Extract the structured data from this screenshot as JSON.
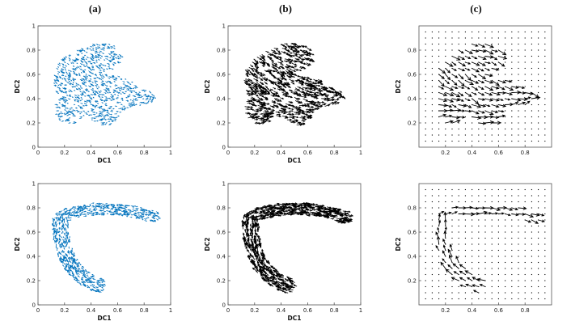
{
  "figure": {
    "column_labels": [
      "(a)",
      "(b)",
      "(c)"
    ],
    "description": "Six quiver (vector-field) panels on diffusion-component coordinates; rows show two datasets, columns show (a) blue per-cell velocity arrows, (b) black per-cell velocity arrows, (c) black velocities averaged on a regular dot grid."
  },
  "chart_data": [
    {
      "type": "quiver",
      "panel": "top-a",
      "layout": "scatter",
      "shape": "blob",
      "color": "#0072BD",
      "stroke_width": 0.6,
      "n_arrows": 900,
      "arrow_len": 0.016,
      "seed": 11,
      "xlabel": "DC1",
      "ylabel": "DC2",
      "xlim": [
        0,
        1
      ],
      "ylim": [
        0,
        1
      ],
      "xticks": [
        "0",
        "0.2",
        "0.4",
        "0.6",
        "0.8",
        "1"
      ],
      "yticks": [
        "0",
        "0.2",
        "0.4",
        "0.6",
        "0.8",
        "1"
      ],
      "flow": "small blue arrows over irregular blob spanning x 0.1-0.9, y 0.15-0.88, streaming toward attractor",
      "attractor": [
        0.87,
        0.4
      ]
    },
    {
      "type": "quiver",
      "panel": "top-b",
      "layout": "scatter",
      "shape": "blob",
      "color": "#000000",
      "stroke_width": 0.8,
      "n_arrows": 700,
      "arrow_len": 0.034,
      "seed": 22,
      "xlabel": "DC1",
      "ylabel": "DC2",
      "xlim": [
        0,
        1
      ],
      "ylim": [
        0,
        1
      ],
      "xticks": [
        "0",
        "0.2",
        "0.4",
        "0.6",
        "0.8",
        "1"
      ],
      "yticks": [
        "0",
        "0.2",
        "0.4",
        "0.6",
        "0.8",
        "1"
      ],
      "flow": "longer black arrows over same blob converging to right tip near (0.85, 0.4)",
      "attractor": [
        0.87,
        0.4
      ]
    },
    {
      "type": "quiver",
      "panel": "top-c",
      "layout": "grid",
      "shape": "blob",
      "color": "#000000",
      "stroke_width": 0.9,
      "grid_step": 0.05,
      "arrow_len": 0.055,
      "seed": 33,
      "xlabel": "",
      "ylabel": "DC2",
      "xlim": [
        0,
        1
      ],
      "ylim": [
        0,
        1
      ],
      "xticks": [
        "0.2",
        "0.4",
        "0.6",
        "0.8"
      ],
      "yticks": [
        "0.2",
        "0.4",
        "0.6",
        "0.8"
      ],
      "flow": "regular dot grid; grid-averaged arrows inside blob point toward right tip",
      "attractor": [
        0.87,
        0.4
      ]
    },
    {
      "type": "quiver",
      "panel": "bottom-a",
      "layout": "scatter",
      "shape": "chevron",
      "color": "#0072BD",
      "stroke_width": 0.6,
      "n_arrows": 900,
      "arrow_len": 0.016,
      "seed": 44,
      "xlabel": "DC1",
      "ylabel": "DC2",
      "xlim": [
        0,
        1
      ],
      "ylim": [
        0,
        1
      ],
      "xticks": [
        "0",
        "0.2",
        "0.4",
        "0.6",
        "0.8",
        "1"
      ],
      "yticks": [
        "0",
        "0.2",
        "0.4",
        "0.6",
        "0.8",
        "1"
      ],
      "flow": "small blue arrows over chevron: top arm y~0.75 x 0.15-0.85 and left arm curving from (0.17,0.7) to (0.46,0.16)"
    },
    {
      "type": "quiver",
      "panel": "bottom-b",
      "layout": "scatter",
      "shape": "chevron",
      "color": "#000000",
      "stroke_width": 0.8,
      "n_arrows": 750,
      "arrow_len": 0.032,
      "seed": 55,
      "xlabel": "DC1",
      "ylabel": "DC2",
      "xlim": [
        0,
        1
      ],
      "ylim": [
        0,
        1
      ],
      "xticks": [
        "0",
        "0.2",
        "0.4",
        "0.6",
        "0.8",
        "1"
      ],
      "yticks": [
        "0",
        "0.2",
        "0.4",
        "0.6",
        "0.8",
        "1"
      ],
      "flow": "black arrows along chevron arms: up the left arm toward the vertex then rightward along the top arm"
    },
    {
      "type": "quiver",
      "panel": "bottom-c",
      "layout": "grid",
      "shape": "chevron",
      "color": "#000000",
      "stroke_width": 0.9,
      "grid_step": 0.05,
      "arrow_len": 0.055,
      "seed": 66,
      "xlabel": "",
      "ylabel": "DC2",
      "xlim": [
        0,
        1
      ],
      "ylim": [
        0,
        1
      ],
      "xticks": [
        "0.2",
        "0.4",
        "0.6",
        "0.8"
      ],
      "yticks": [
        "0.2",
        "0.4",
        "0.6",
        "0.8"
      ],
      "flow": "regular dot grid; grid-averaged arrows trace the chevron arms"
    }
  ]
}
